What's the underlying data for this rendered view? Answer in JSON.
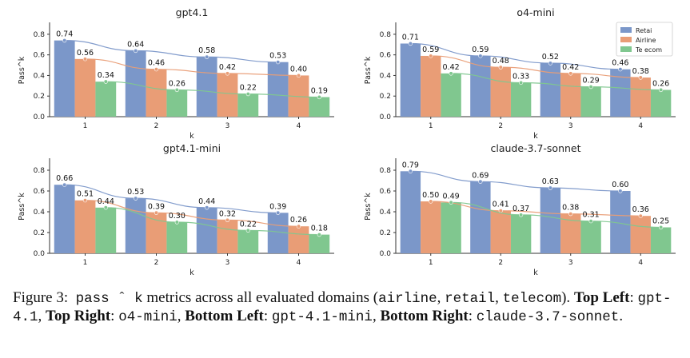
{
  "colors": {
    "retail": "#7b97c9",
    "airline": "#e99d76",
    "telecom": "#80c78f"
  },
  "chart_data": [
    {
      "type": "bar",
      "title": "gpt4.1",
      "xlabel": "k",
      "ylabel": "Pass^k",
      "categories": [
        "1",
        "2",
        "3",
        "4"
      ],
      "ylim": [
        0,
        0.9
      ],
      "yticks": [
        "0.0",
        "0.2",
        "0.4",
        "0.6",
        "0.8"
      ],
      "legend": null,
      "series": [
        {
          "name": "Retail",
          "color_key": "retail",
          "values": [
            0.74,
            0.64,
            0.58,
            0.53
          ],
          "labels": [
            "0.74",
            "0.64",
            "0.58",
            "0.53"
          ]
        },
        {
          "name": "Airline",
          "color_key": "airline",
          "values": [
            0.56,
            0.46,
            0.42,
            0.4
          ],
          "labels": [
            "0.56",
            "0.46",
            "0.42",
            "0.40"
          ]
        },
        {
          "name": "Telecom",
          "color_key": "telecom",
          "values": [
            0.34,
            0.26,
            0.22,
            0.19
          ],
          "labels": [
            "0.34",
            "0.26",
            "0.22",
            "0.19"
          ]
        }
      ]
    },
    {
      "type": "bar",
      "title": "o4-mini",
      "xlabel": "k",
      "ylabel": "Pass^k",
      "categories": [
        "1",
        "2",
        "3",
        "4"
      ],
      "ylim": [
        0,
        0.9
      ],
      "yticks": [
        "0.0",
        "0.2",
        "0.4",
        "0.6",
        "0.8"
      ],
      "legend": "top-right",
      "series": [
        {
          "name": "Retai",
          "color_key": "retail",
          "values": [
            0.71,
            0.59,
            0.52,
            0.46
          ],
          "labels": [
            "0.71",
            "0.59",
            "0.52",
            "0.46"
          ]
        },
        {
          "name": "Airline",
          "color_key": "airline",
          "values": [
            0.59,
            0.48,
            0.42,
            0.38
          ],
          "labels": [
            "0.59",
            "0.48",
            "0.42",
            "0.38"
          ]
        },
        {
          "name": "Te ecom",
          "color_key": "telecom",
          "values": [
            0.42,
            0.33,
            0.29,
            0.26
          ],
          "labels": [
            "0.42",
            "0.33",
            "0.29",
            "0.26"
          ]
        }
      ]
    },
    {
      "type": "bar",
      "title": "gpt4.1-mini",
      "xlabel": "k",
      "ylabel": "Pass^k",
      "categories": [
        "1",
        "2",
        "3",
        "4"
      ],
      "ylim": [
        0,
        0.9
      ],
      "yticks": [
        "0.0",
        "0.2",
        "0.4",
        "0.6",
        "0.8"
      ],
      "legend": null,
      "series": [
        {
          "name": "Retail",
          "color_key": "retail",
          "values": [
            0.66,
            0.53,
            0.44,
            0.39
          ],
          "labels": [
            "0.66",
            "0.53",
            "0.44",
            "0.39"
          ]
        },
        {
          "name": "Airline",
          "color_key": "airline",
          "values": [
            0.51,
            0.39,
            0.32,
            0.26
          ],
          "labels": [
            "0.51",
            "0.39",
            "0.32",
            "0.26"
          ]
        },
        {
          "name": "Telecom",
          "color_key": "telecom",
          "values": [
            0.44,
            0.3,
            0.22,
            0.18
          ],
          "labels": [
            "0.44",
            "0.30",
            "0.22",
            "0.18"
          ]
        }
      ]
    },
    {
      "type": "bar",
      "title": "claude-3.7-sonnet",
      "xlabel": "k",
      "ylabel": "Pass^k",
      "categories": [
        "1",
        "2",
        "3",
        "4"
      ],
      "ylim": [
        0,
        0.9
      ],
      "yticks": [
        "0.0",
        "0.2",
        "0.4",
        "0.6",
        "0.8"
      ],
      "legend": null,
      "series": [
        {
          "name": "Retail",
          "color_key": "retail",
          "values": [
            0.79,
            0.69,
            0.63,
            0.6
          ],
          "labels": [
            "0.79",
            "0.69",
            "0.63",
            "0.60"
          ]
        },
        {
          "name": "Airline",
          "color_key": "airline",
          "values": [
            0.5,
            0.41,
            0.38,
            0.36
          ],
          "labels": [
            "0.50",
            "0.41",
            "0.38",
            "0.36"
          ]
        },
        {
          "name": "Telecom",
          "color_key": "telecom",
          "values": [
            0.49,
            0.37,
            0.31,
            0.25
          ],
          "labels": [
            "0.49",
            "0.37",
            "0.31",
            "0.25"
          ]
        }
      ]
    }
  ],
  "caption": {
    "figure_label": "Figure 3:",
    "metric_code": "pass ˆ k",
    "text_1": " metrics across all evaluated domains (",
    "domain_1": "airline",
    "sep_1": ", ",
    "domain_2": "retail",
    "sep_2": ", ",
    "domain_3": "telecom",
    "text_2": ").",
    "top_left_label": "Top Left",
    "colon_1": ": ",
    "top_left_model": "gpt-4.1",
    "comma_1": ", ",
    "top_right_label": "Top Right",
    "colon_2": ": ",
    "top_right_model": "o4-mini",
    "comma_2": ", ",
    "bottom_left_label": "Bottom Left",
    "colon_3": ": ",
    "bottom_left_model": "gpt-4.1-mini",
    "comma_3": ", ",
    "bottom_right_label": "Bottom Right",
    "colon_4": ": ",
    "bottom_right_model": "claude-3.7-sonnet",
    "end": "."
  }
}
